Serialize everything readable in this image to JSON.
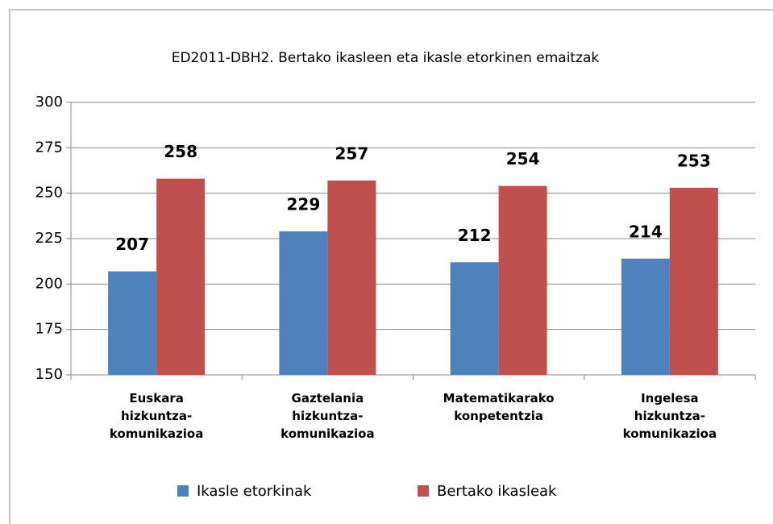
{
  "chart_data": {
    "type": "bar",
    "title": "ED2011-DBH2. Bertako ikasleen eta ikasle etorkinen emaitzak",
    "categories": [
      "Euskara hizkuntza-komunikazioa",
      "Gaztelania hizkuntza-komunikazioa",
      "Matematikarako konpetentzia",
      "Ingelesa hizkuntza-komunikazioa"
    ],
    "series": [
      {
        "name": "Ikasle etorkinak",
        "color": "#4f81bd",
        "values": [
          207,
          229,
          212,
          214
        ]
      },
      {
        "name": "Bertako ikasleak",
        "color": "#c0504d",
        "values": [
          258,
          257,
          254,
          253
        ]
      }
    ],
    "ylim": [
      150,
      300
    ],
    "yticks": [
      150,
      175,
      200,
      225,
      250,
      275,
      300
    ],
    "grid": true,
    "legend": "bottom"
  }
}
